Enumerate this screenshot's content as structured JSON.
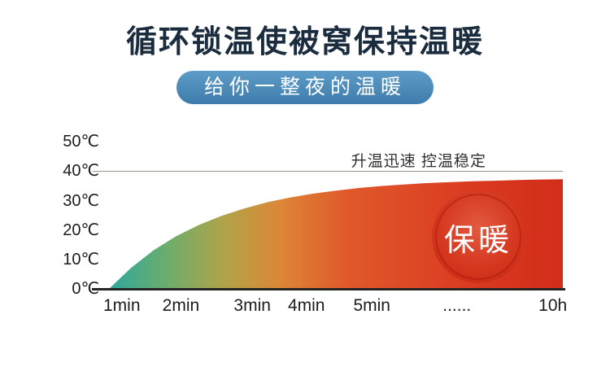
{
  "page": {
    "title": "循环锁温使被窝保持温暖",
    "subtitle": "给你一整夜的温暖"
  },
  "chart_data": {
    "type": "area",
    "title": "",
    "annotation": "升温迅速 控温稳定",
    "badge_label": "保暖",
    "categories": [
      "1min",
      "2min",
      "3min",
      "4min",
      "5min",
      "......",
      "10h"
    ],
    "values": [
      5,
      20,
      28,
      31.5,
      34,
      36,
      37.5
    ],
    "y_ticks": [
      "0℃",
      "10℃",
      "20℃",
      "30℃",
      "40℃",
      "50℃"
    ],
    "ylim": [
      0,
      50
    ],
    "xlabel": "",
    "ylabel": "",
    "legend": "none",
    "grid": "single-top-gridline-at-40",
    "curve_samples": [
      [
        0,
        0
      ],
      [
        0.05,
        7.4
      ],
      [
        0.1,
        13.4
      ],
      [
        0.15,
        18.2
      ],
      [
        0.2,
        22.0
      ],
      [
        0.25,
        25.1
      ],
      [
        0.3,
        27.6
      ],
      [
        0.35,
        29.7
      ],
      [
        0.4,
        31.3
      ],
      [
        0.45,
        32.6
      ],
      [
        0.5,
        33.6
      ],
      [
        0.55,
        34.5
      ],
      [
        0.6,
        35.2
      ],
      [
        0.65,
        35.7
      ],
      [
        0.7,
        36.2
      ],
      [
        0.75,
        36.5
      ],
      [
        0.8,
        36.8
      ],
      [
        0.85,
        37.0
      ],
      [
        0.9,
        37.2
      ],
      [
        0.95,
        37.4
      ],
      [
        1,
        37.5
      ]
    ],
    "gradient": [
      "#2ea89d",
      "#72ad68",
      "#b3a248",
      "#dd8636",
      "#e05a2b",
      "#da3a20",
      "#d22d1a"
    ]
  },
  "colors": {
    "title_text": "#1a2c3e",
    "banner_top": "#5d9cc8",
    "banner_bottom": "#3e7cab",
    "banner_text": "#ffffff",
    "axis_line": "#252525",
    "tick_text": "#1c1c1c",
    "gridline": "#9a948a",
    "badge_red": "#d5371f",
    "badge_text": "#ffffff"
  }
}
